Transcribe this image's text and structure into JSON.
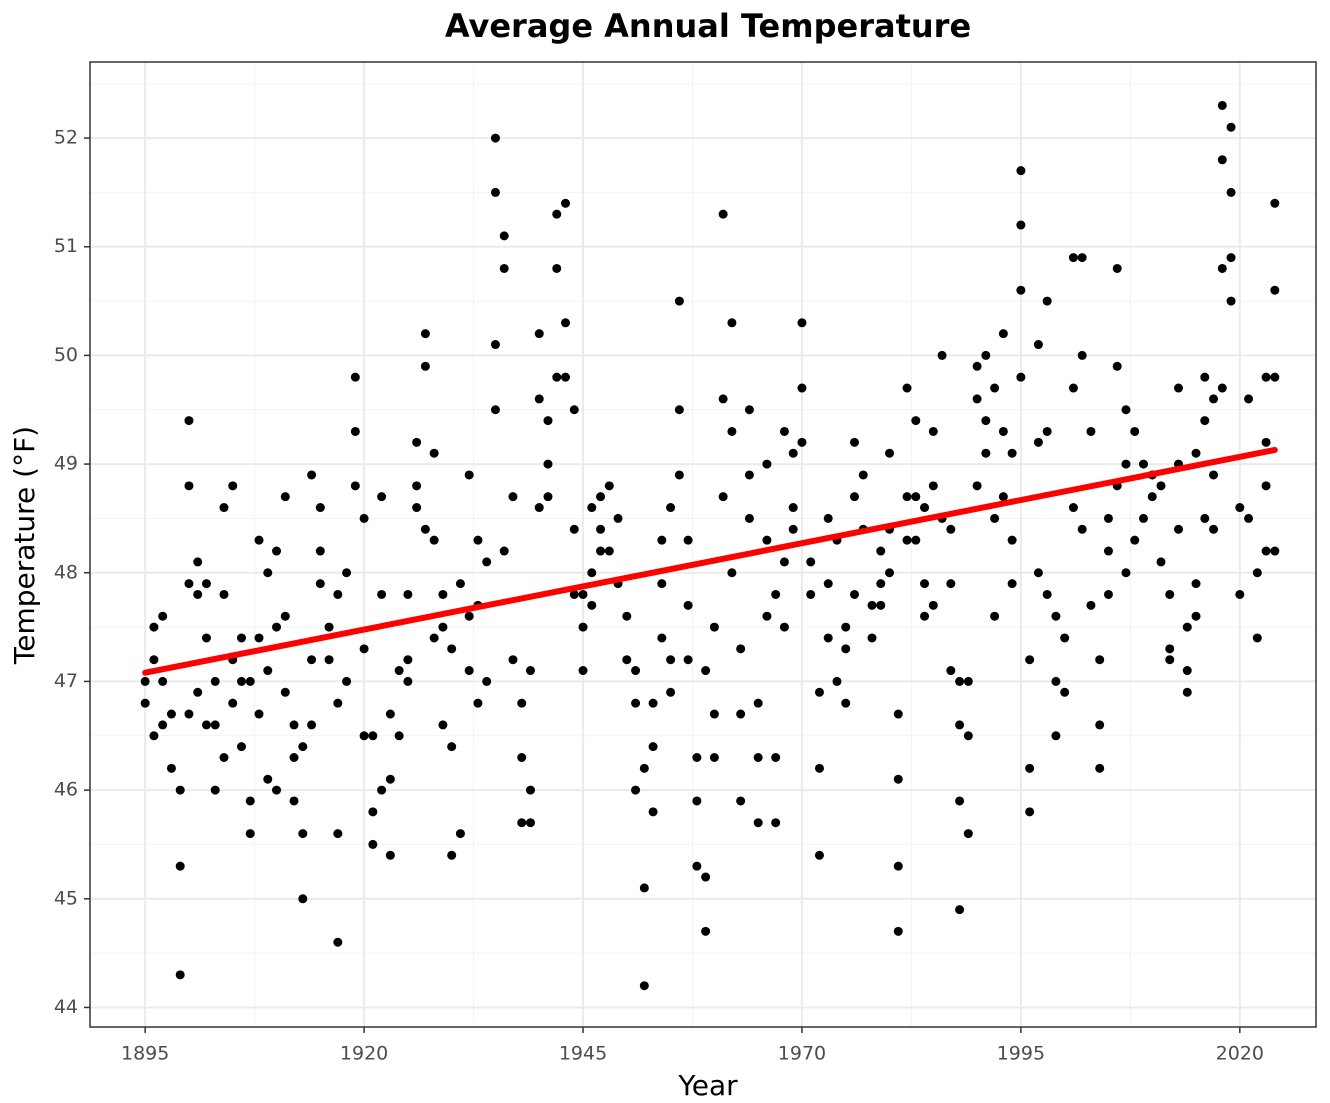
{
  "chart_data": {
    "type": "scatter",
    "title": "Average Annual Temperature",
    "x_label": "Year",
    "y_label": "Temperature (°F)",
    "xlim": [
      1888.7,
      2028.7
    ],
    "ylim": [
      43.82,
      52.7
    ],
    "xticks": [
      1895,
      1920,
      1945,
      1970,
      1995,
      2020
    ],
    "yticks": [
      44,
      45,
      46,
      47,
      48,
      49,
      50,
      51,
      52
    ],
    "xminor": [
      1907.5,
      1932.5,
      1957.5,
      1982.5,
      2007.5
    ],
    "yminor": [
      44.5,
      45.5,
      46.5,
      47.5,
      48.5,
      49.5,
      50.5,
      51.5,
      52.5
    ],
    "grid": true,
    "series": [
      {
        "type": "scatter",
        "color": "#000000",
        "x": [
          1895,
          1896,
          1897,
          1898,
          1899,
          1900,
          1901,
          1902,
          1903,
          1904,
          1905,
          1906,
          1907,
          1908,
          1909,
          1910,
          1911,
          1912,
          1913,
          1914,
          1915,
          1916,
          1917,
          1918,
          1919,
          1920,
          1921,
          1922,
          1923,
          1924,
          1925,
          1926,
          1927,
          1928,
          1929,
          1930,
          1931,
          1932,
          1933,
          1934,
          1935,
          1936,
          1937,
          1938,
          1939,
          1940,
          1941,
          1942,
          1943,
          1944,
          1945,
          1946,
          1947,
          1948,
          1949,
          1950,
          1951,
          1952,
          1953,
          1954,
          1955,
          1956,
          1957,
          1958,
          1959,
          1960,
          1961,
          1962,
          1963,
          1964,
          1965,
          1966,
          1967,
          1968,
          1969,
          1970,
          1971,
          1972,
          1973,
          1974,
          1975,
          1976,
          1977,
          1978,
          1979,
          1980,
          1981,
          1982,
          1983,
          1984,
          1985,
          1986,
          1987,
          1988,
          1989,
          1990,
          1991,
          1992,
          1993,
          1994,
          1995,
          1996,
          1997,
          1998,
          1999,
          2000,
          2001,
          2002,
          2003,
          2004,
          2005,
          2006,
          2007,
          2008,
          2009,
          2010,
          2011,
          2012,
          2013,
          2014,
          2015,
          2016,
          2017,
          2018,
          2019,
          2020,
          2021,
          2022,
          2023,
          2024
        ],
        "y": [
          [
            46.8,
            47.0
          ],
          [
            46.5,
            47.5,
            47.2
          ],
          [
            46.6,
            47.6,
            47.0
          ],
          [
            46.2,
            46.7
          ],
          [
            44.3,
            45.3,
            46.0
          ],
          [
            47.9,
            49.4,
            46.7,
            48.8
          ],
          [
            47.8,
            46.9,
            48.1
          ],
          [
            47.4,
            46.6,
            47.9
          ],
          [
            46.0,
            46.6,
            47.0
          ],
          [
            47.8,
            48.6,
            46.3
          ],
          [
            47.2,
            48.8,
            46.8
          ],
          [
            47.0,
            47.4,
            46.4
          ],
          [
            45.6,
            47.0,
            45.9
          ],
          [
            48.3,
            47.4,
            46.7
          ],
          [
            46.1,
            47.1,
            48.0
          ],
          [
            47.5,
            48.2,
            46.0
          ],
          [
            48.7,
            46.9,
            47.6
          ],
          [
            46.6,
            45.9,
            46.3
          ],
          [
            45.0,
            45.6,
            46.4
          ],
          [
            48.9,
            47.2,
            46.6
          ],
          [
            48.6,
            47.9,
            48.2
          ],
          [
            47.5,
            47.2
          ],
          [
            44.6,
            45.6,
            46.8,
            47.8
          ],
          [
            48.0,
            47.0
          ],
          [
            49.8,
            48.8,
            49.3
          ],
          [
            46.5,
            48.5,
            47.3
          ],
          [
            45.5,
            46.5,
            45.8
          ],
          [
            47.8,
            48.7,
            46.0
          ],
          [
            45.4,
            46.7,
            46.1
          ],
          [
            46.5,
            47.1
          ],
          [
            47.8,
            47.2,
            47.0
          ],
          [
            48.6,
            49.2,
            48.8
          ],
          [
            49.9,
            50.2,
            48.4
          ],
          [
            48.3,
            49.1,
            47.4
          ],
          [
            46.6,
            47.5,
            47.8
          ],
          [
            45.4,
            46.4,
            47.3
          ],
          [
            45.6,
            47.9
          ],
          [
            48.9,
            47.6,
            47.1
          ],
          [
            46.8,
            47.7,
            48.3
          ],
          [
            47.0,
            48.1
          ],
          [
            52.0,
            51.5,
            50.1,
            49.5
          ],
          [
            50.8,
            48.2,
            51.1
          ],
          [
            47.2,
            48.7
          ],
          [
            45.7,
            46.8,
            46.3
          ],
          [
            46.0,
            47.1,
            45.7
          ],
          [
            49.6,
            48.6,
            50.2
          ],
          [
            49.4,
            49.0,
            48.7
          ],
          [
            51.3,
            49.8,
            50.8
          ],
          [
            51.4,
            50.3,
            49.8
          ],
          [
            49.5,
            48.4,
            47.8
          ],
          [
            47.1,
            47.8,
            47.5
          ],
          [
            48.6,
            48.0,
            47.7
          ],
          [
            48.7,
            48.2,
            48.4
          ],
          [
            48.8,
            48.2
          ],
          [
            48.5,
            47.9
          ],
          [
            47.6,
            47.2
          ],
          [
            46.0,
            46.8,
            47.1
          ],
          [
            44.2,
            45.1,
            46.2
          ],
          [
            45.8,
            46.4,
            46.8
          ],
          [
            47.9,
            48.3,
            47.4
          ],
          [
            47.2,
            48.6,
            46.9
          ],
          [
            50.5,
            49.5,
            48.9
          ],
          [
            48.3,
            47.7,
            47.2
          ],
          [
            46.3,
            45.3,
            45.9
          ],
          [
            45.2,
            47.1,
            44.7
          ],
          [
            46.7,
            47.5,
            46.3
          ],
          [
            51.3,
            49.6,
            48.7
          ],
          [
            50.3,
            49.3,
            48.0
          ],
          [
            46.7,
            47.3,
            45.9
          ],
          [
            49.5,
            48.5,
            48.9
          ],
          [
            46.8,
            45.7,
            46.3
          ],
          [
            47.6,
            48.3,
            49.0
          ],
          [
            45.7,
            46.3,
            47.8
          ],
          [
            49.3,
            48.1,
            47.5
          ],
          [
            48.6,
            49.1,
            48.4
          ],
          [
            50.3,
            49.7,
            49.2
          ],
          [
            48.1,
            47.8
          ],
          [
            45.4,
            46.2,
            46.9
          ],
          [
            48.5,
            47.4,
            47.9
          ],
          [
            48.3,
            47.0
          ],
          [
            46.8,
            47.3,
            47.5
          ],
          [
            49.2,
            48.7,
            47.8
          ],
          [
            48.9,
            48.4
          ],
          [
            47.4,
            47.7
          ],
          [
            48.2,
            47.7,
            47.9
          ],
          [
            49.1,
            48.0,
            48.4
          ],
          [
            46.7,
            45.3,
            44.7,
            46.1
          ],
          [
            48.3,
            49.7,
            48.7
          ],
          [
            48.7,
            49.4,
            48.3
          ],
          [
            48.6,
            47.6,
            47.9
          ],
          [
            49.3,
            48.8,
            47.7
          ],
          [
            50.0,
            48.5
          ],
          [
            47.1,
            47.9,
            48.4
          ],
          [
            44.9,
            45.9,
            46.6,
            47.0
          ],
          [
            45.6,
            46.5,
            47.0
          ],
          [
            49.9,
            48.8,
            49.6
          ],
          [
            49.4,
            49.1,
            50.0
          ],
          [
            48.5,
            49.7,
            47.6
          ],
          [
            49.3,
            50.2,
            48.7
          ],
          [
            47.9,
            49.1,
            48.3
          ],
          [
            51.7,
            51.2,
            50.6,
            49.8
          ],
          [
            45.8,
            46.2,
            47.2
          ],
          [
            50.1,
            49.2,
            48.0
          ],
          [
            50.5,
            49.3,
            47.8
          ],
          [
            46.5,
            47.0,
            47.6
          ],
          [
            46.9,
            47.4
          ],
          [
            50.9,
            49.7,
            48.6
          ],
          [
            50.9,
            50.0,
            48.4
          ],
          [
            49.3,
            47.7
          ],
          [
            46.2,
            46.6,
            47.2
          ],
          [
            47.8,
            48.5,
            48.2
          ],
          [
            50.8,
            49.9,
            48.8
          ],
          [
            49.5,
            49.0,
            48.0
          ],
          [
            49.3,
            48.3
          ],
          [
            49.0,
            48.5
          ],
          [
            48.7,
            48.9
          ],
          [
            48.1,
            48.8
          ],
          [
            47.3,
            47.8,
            47.2
          ],
          [
            49.7,
            49.0,
            48.4
          ],
          [
            46.9,
            47.5,
            47.1
          ],
          [
            49.1,
            47.9,
            47.6
          ],
          [
            49.8,
            49.4,
            48.5
          ],
          [
            49.6,
            48.9,
            48.4
          ],
          [
            52.3,
            51.8,
            50.8,
            49.7
          ],
          [
            52.1,
            51.5,
            50.5,
            50.9
          ],
          [
            48.6,
            47.8
          ],
          [
            49.6,
            48.5
          ],
          [
            47.4,
            48.0
          ],
          [
            49.8,
            49.2,
            48.8,
            48.2
          ],
          [
            51.4,
            50.6,
            49.8,
            48.2
          ]
        ]
      },
      {
        "type": "line",
        "color": "#ff0000",
        "x": [
          1895,
          2024
        ],
        "y": [
          47.08,
          49.13
        ]
      }
    ]
  }
}
